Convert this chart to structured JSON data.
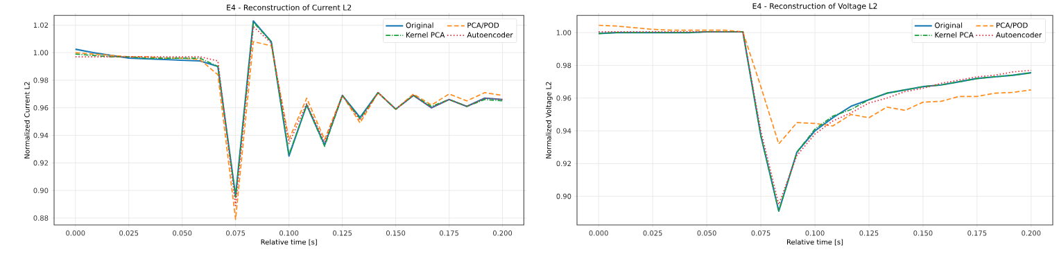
{
  "chart_data": [
    {
      "type": "line",
      "title": "E4 - Reconstruction of Current L2",
      "xlabel": "Relative time [s]",
      "ylabel": "Normalized Current L2",
      "x": [
        0,
        0.0083,
        0.0167,
        0.025,
        0.0333,
        0.0417,
        0.05,
        0.0583,
        0.0667,
        0.075,
        0.0833,
        0.0917,
        0.1,
        0.1083,
        0.1167,
        0.125,
        0.1333,
        0.1417,
        0.15,
        0.1583,
        0.1667,
        0.175,
        0.1833,
        0.1917,
        0.2
      ],
      "series": [
        {
          "name": "Original",
          "color": "#1a7ab5",
          "line_style": "solid",
          "values": [
            1.0025,
            1.0,
            0.998,
            0.996,
            0.9955,
            0.995,
            0.9945,
            0.994,
            0.99,
            0.896,
            1.023,
            1.008,
            0.925,
            0.962,
            0.933,
            0.969,
            0.953,
            0.971,
            0.959,
            0.969,
            0.96,
            0.966,
            0.961,
            0.967,
            0.966
          ]
        },
        {
          "name": "PCA/POD",
          "color": "#ff8c1a",
          "line_style": "dashed",
          "values": [
            1.0,
            0.999,
            0.998,
            0.997,
            0.997,
            0.996,
            0.996,
            0.995,
            0.984,
            0.879,
            1.008,
            1.005,
            0.937,
            0.967,
            0.937,
            0.969,
            0.949,
            0.971,
            0.959,
            0.97,
            0.962,
            0.97,
            0.965,
            0.971,
            0.969
          ]
        },
        {
          "name": "Kernel PCA",
          "color": "#1a9e3a",
          "line_style": "dashdot",
          "values": [
            0.999,
            0.998,
            0.997,
            0.997,
            0.996,
            0.996,
            0.996,
            0.996,
            0.99,
            0.895,
            1.022,
            1.008,
            0.926,
            0.962,
            0.932,
            0.969,
            0.952,
            0.971,
            0.959,
            0.969,
            0.961,
            0.966,
            0.961,
            0.966,
            0.965
          ]
        },
        {
          "name": "Autoencoder",
          "color": "#e8283a",
          "line_style": "dotted",
          "values": [
            0.997,
            0.997,
            0.997,
            0.997,
            0.997,
            0.997,
            0.997,
            0.997,
            0.994,
            0.889,
            1.019,
            1.007,
            0.934,
            0.963,
            0.935,
            0.969,
            0.951,
            0.971,
            0.959,
            0.969,
            0.96,
            0.966,
            0.961,
            0.967,
            0.966
          ]
        }
      ],
      "xlim": [
        -0.01,
        0.21
      ],
      "ylim": [
        0.875,
        1.027
      ],
      "xticks": [
        {
          "value": 0,
          "label": "0.000"
        },
        {
          "value": 0.025,
          "label": "0.025"
        },
        {
          "value": 0.05,
          "label": "0.050"
        },
        {
          "value": 0.075,
          "label": "0.075"
        },
        {
          "value": 0.1,
          "label": "0.100"
        },
        {
          "value": 0.125,
          "label": "0.125"
        },
        {
          "value": 0.15,
          "label": "0.150"
        },
        {
          "value": 0.175,
          "label": "0.175"
        },
        {
          "value": 0.2,
          "label": "0.200"
        }
      ],
      "yticks": [
        {
          "value": 0.88,
          "label": "0.88"
        },
        {
          "value": 0.9,
          "label": "0.90"
        },
        {
          "value": 0.92,
          "label": "0.92"
        },
        {
          "value": 0.94,
          "label": "0.94"
        },
        {
          "value": 0.96,
          "label": "0.96"
        },
        {
          "value": 0.98,
          "label": "0.98"
        },
        {
          "value": 1.0,
          "label": "1.00"
        },
        {
          "value": 1.02,
          "label": "1.02"
        }
      ],
      "grid": true,
      "legend": "top right"
    },
    {
      "type": "line",
      "title": "E4 - Reconstruction of Voltage L2",
      "xlabel": "Relative time [s]",
      "ylabel": "Normalized Voltage L2",
      "x": [
        0,
        0.0083,
        0.0167,
        0.025,
        0.0333,
        0.0417,
        0.05,
        0.0583,
        0.0667,
        0.075,
        0.0833,
        0.0917,
        0.1,
        0.1083,
        0.1167,
        0.125,
        0.1333,
        0.1417,
        0.15,
        0.1583,
        0.1667,
        0.175,
        0.1833,
        0.1917,
        0.2
      ],
      "series": [
        {
          "name": "Original",
          "color": "#1a7ab5",
          "line_style": "solid",
          "values": [
            0.9995,
            1.0,
            1.0,
            1.0,
            1.0,
            1.0,
            1.0005,
            1.0005,
            1.0005,
            0.937,
            0.891,
            0.927,
            0.94,
            0.948,
            0.955,
            0.959,
            0.963,
            0.965,
            0.967,
            0.968,
            0.97,
            0.972,
            0.973,
            0.974,
            0.9755
          ]
        },
        {
          "name": "PCA/POD",
          "color": "#ff8c1a",
          "line_style": "dashed",
          "values": [
            1.0045,
            1.004,
            1.003,
            1.002,
            1.0015,
            1.0015,
            1.0015,
            1.0015,
            1.0005,
            0.967,
            0.932,
            0.945,
            0.9445,
            0.943,
            0.95,
            0.948,
            0.9545,
            0.9525,
            0.9575,
            0.958,
            0.961,
            0.961,
            0.963,
            0.9635,
            0.965
          ]
        },
        {
          "name": "Kernel PCA",
          "color": "#1a9e3a",
          "line_style": "dashdot",
          "values": [
            0.9995,
            1.0,
            1.0,
            1.0,
            1.0,
            1.0,
            1.0005,
            1.0005,
            1.0005,
            0.937,
            0.891,
            0.927,
            0.941,
            0.949,
            0.953,
            0.959,
            0.963,
            0.965,
            0.967,
            0.968,
            0.97,
            0.972,
            0.973,
            0.974,
            0.9755
          ]
        },
        {
          "name": "Autoencoder",
          "color": "#e8283a",
          "line_style": "dotted",
          "values": [
            1.0005,
            1.0005,
            1.0005,
            1.0005,
            1.0005,
            1.0005,
            1.0005,
            1.0005,
            1.0005,
            0.94,
            0.895,
            0.925,
            0.938,
            0.946,
            0.951,
            0.957,
            0.96,
            0.964,
            0.966,
            0.969,
            0.971,
            0.973,
            0.974,
            0.976,
            0.977
          ]
        }
      ],
      "xlim": [
        -0.01,
        0.21
      ],
      "ylim": [
        0.8825,
        1.0105
      ],
      "xticks": [
        {
          "value": 0,
          "label": "0.000"
        },
        {
          "value": 0.025,
          "label": "0.025"
        },
        {
          "value": 0.05,
          "label": "0.050"
        },
        {
          "value": 0.075,
          "label": "0.075"
        },
        {
          "value": 0.1,
          "label": "0.100"
        },
        {
          "value": 0.125,
          "label": "0.125"
        },
        {
          "value": 0.15,
          "label": "0.150"
        },
        {
          "value": 0.175,
          "label": "0.175"
        },
        {
          "value": 0.2,
          "label": "0.200"
        }
      ],
      "yticks": [
        {
          "value": 0.9,
          "label": "0.90"
        },
        {
          "value": 0.92,
          "label": "0.92"
        },
        {
          "value": 0.94,
          "label": "0.94"
        },
        {
          "value": 0.96,
          "label": "0.96"
        },
        {
          "value": 0.98,
          "label": "0.98"
        },
        {
          "value": 1.0,
          "label": "1.00"
        }
      ],
      "grid": true,
      "legend": "top right"
    }
  ]
}
